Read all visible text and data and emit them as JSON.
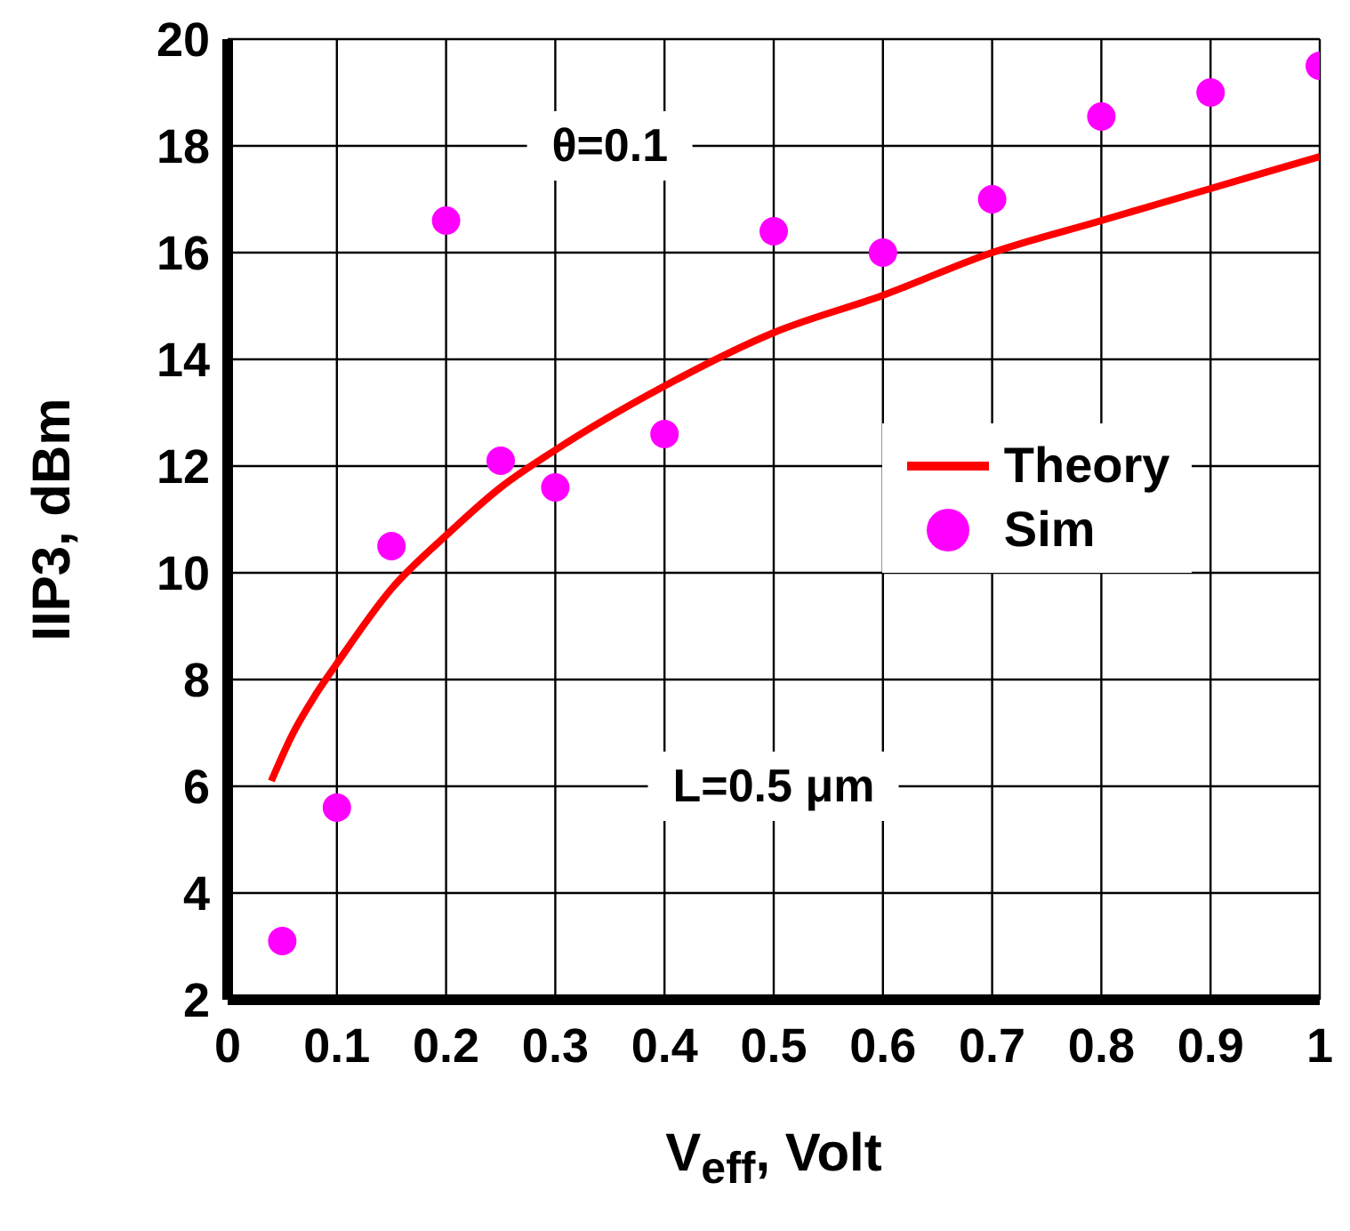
{
  "chart_data": {
    "type": "scatter",
    "xlabel": "V$_{eff}$, Volt",
    "ylabel": "IIP3, dBm",
    "xlim": [
      0,
      1
    ],
    "xticks": [
      0,
      0.1,
      0.2,
      0.3,
      0.4,
      0.5,
      0.6,
      0.7,
      0.8,
      0.9,
      1
    ],
    "ylim": [
      2,
      20
    ],
    "yticks": [
      2,
      4,
      6,
      8,
      10,
      12,
      14,
      16,
      18,
      20
    ],
    "grid": true,
    "legend": "right",
    "annotations": [
      "θ=0.1",
      "L=0.5 μm"
    ],
    "series": [
      {
        "name": "Theory",
        "type": "line",
        "color": "#ff0000",
        "x": [
          0.04,
          0.06,
          0.08,
          0.1,
          0.15,
          0.2,
          0.25,
          0.3,
          0.4,
          0.5,
          0.6,
          0.7,
          0.8,
          0.9,
          1
        ],
        "values": [
          6.1,
          7.0,
          7.7,
          8.3,
          9.7,
          10.7,
          11.6,
          12.3,
          13.5,
          14.5,
          15.2,
          16.0,
          16.6,
          17.2,
          17.8
        ]
      },
      {
        "name": "Sim",
        "marker": "circle",
        "color": "#ff00ff",
        "x": [
          0.05,
          0.1,
          0.15,
          0.2,
          0.25,
          0.3,
          0.4,
          0.5,
          0.6,
          0.7,
          0.8,
          0.9,
          1
        ],
        "values": [
          3.1,
          5.6,
          10.5,
          16.6,
          12.1,
          11.6,
          12.6,
          16.4,
          16.0,
          17.0,
          18.55,
          19.0,
          19.5
        ]
      }
    ]
  }
}
